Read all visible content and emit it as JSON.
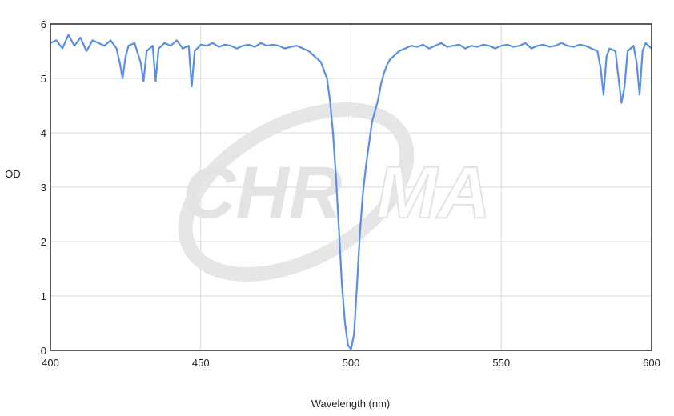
{
  "watermark": {
    "text_solid": "CHR",
    "text_outline": "MA"
  },
  "chart_data": {
    "type": "line",
    "title": "",
    "xlabel": "Wavelength (nm)",
    "ylabel": "OD",
    "xlim": [
      400,
      600
    ],
    "ylim": [
      0,
      6
    ],
    "x_ticks": [
      400,
      450,
      500,
      550,
      600
    ],
    "y_ticks": [
      0,
      1,
      2,
      3,
      4,
      5,
      6
    ],
    "grid": true,
    "legend": "none",
    "series": [
      {
        "color": "#5b8ee6",
        "x": [
          400,
          402,
          404,
          406,
          408,
          410,
          412,
          414,
          416,
          418,
          420,
          422,
          423,
          424,
          425,
          426,
          428,
          430,
          431,
          432,
          434,
          435,
          436,
          438,
          440,
          442,
          444,
          446,
          447,
          448,
          450,
          452,
          454,
          456,
          458,
          460,
          462,
          464,
          466,
          468,
          470,
          472,
          474,
          476,
          478,
          480,
          482,
          484,
          486,
          488,
          490,
          492,
          493,
          494,
          495,
          496,
          497,
          498,
          499,
          500,
          501,
          502,
          503,
          504,
          505,
          506,
          507,
          508,
          509,
          510,
          511,
          512,
          513,
          514,
          515,
          516,
          518,
          520,
          522,
          524,
          526,
          528,
          530,
          532,
          534,
          536,
          538,
          540,
          542,
          544,
          546,
          548,
          550,
          552,
          554,
          556,
          558,
          560,
          562,
          564,
          566,
          568,
          570,
          572,
          574,
          576,
          578,
          580,
          582,
          583,
          584,
          585,
          586,
          588,
          589,
          590,
          591,
          592,
          594,
          595,
          596,
          597,
          598,
          600
        ],
        "y": [
          5.65,
          5.7,
          5.55,
          5.8,
          5.6,
          5.75,
          5.5,
          5.7,
          5.65,
          5.6,
          5.7,
          5.55,
          5.3,
          5.0,
          5.4,
          5.6,
          5.65,
          5.3,
          4.95,
          5.5,
          5.6,
          4.95,
          5.55,
          5.65,
          5.6,
          5.7,
          5.55,
          5.6,
          4.85,
          5.5,
          5.62,
          5.6,
          5.65,
          5.58,
          5.62,
          5.6,
          5.55,
          5.6,
          5.62,
          5.58,
          5.65,
          5.6,
          5.62,
          5.6,
          5.55,
          5.58,
          5.6,
          5.55,
          5.5,
          5.4,
          5.3,
          5.0,
          4.6,
          4.0,
          3.2,
          2.2,
          1.2,
          0.5,
          0.1,
          0.02,
          0.3,
          1.2,
          2.2,
          2.9,
          3.4,
          3.8,
          4.2,
          4.4,
          4.6,
          4.9,
          5.1,
          5.25,
          5.35,
          5.4,
          5.45,
          5.5,
          5.55,
          5.6,
          5.58,
          5.62,
          5.55,
          5.6,
          5.65,
          5.58,
          5.6,
          5.62,
          5.55,
          5.6,
          5.58,
          5.62,
          5.6,
          5.55,
          5.6,
          5.62,
          5.58,
          5.6,
          5.65,
          5.55,
          5.6,
          5.62,
          5.58,
          5.6,
          5.65,
          5.6,
          5.58,
          5.62,
          5.6,
          5.55,
          5.5,
          5.2,
          4.7,
          5.4,
          5.55,
          5.5,
          5.0,
          4.55,
          4.85,
          5.5,
          5.6,
          5.3,
          4.7,
          5.5,
          5.65,
          5.55
        ]
      }
    ]
  }
}
